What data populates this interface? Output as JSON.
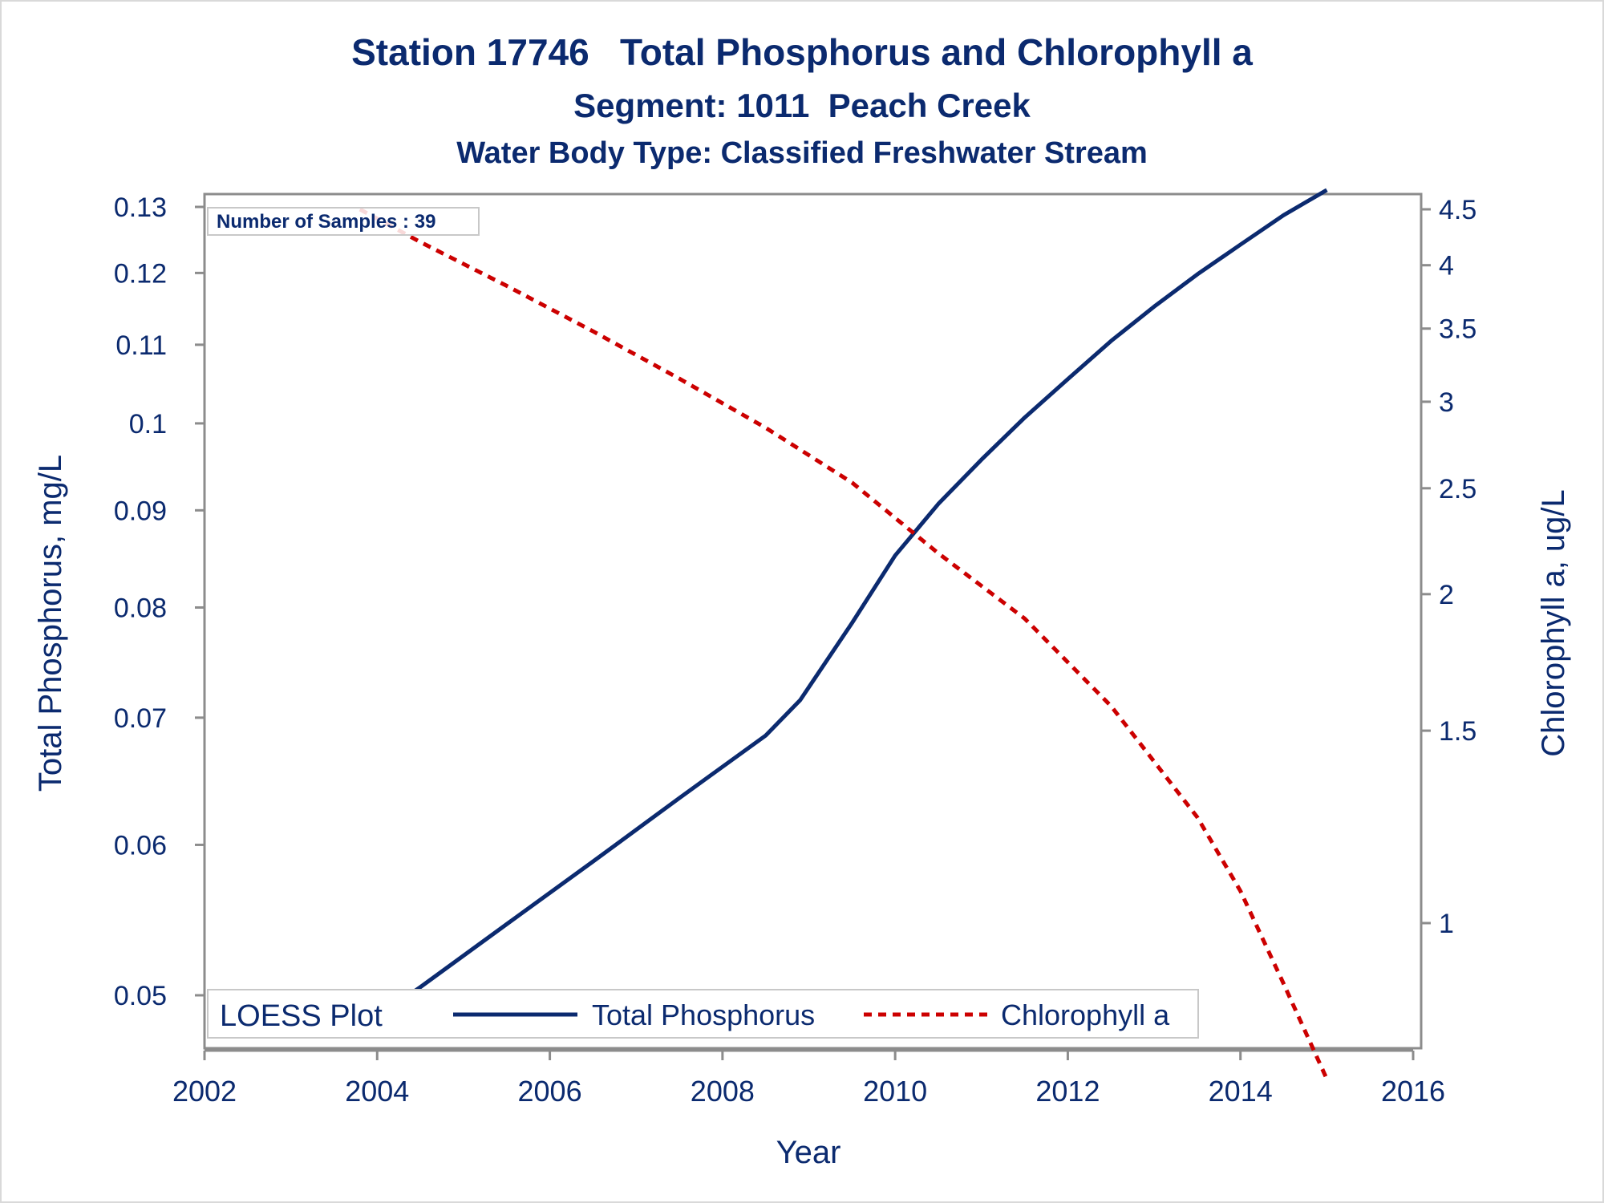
{
  "titles": {
    "line1": "Station 17746   Total Phosphorus and Chlorophyll a",
    "line2": "Segment: 1011  Peach Creek",
    "line3": "Water Body Type: Classified Freshwater Stream"
  },
  "colors": {
    "text": "#0b2a6f",
    "phosphorus": "#0b2a6f",
    "chlorophyll": "#cc0000",
    "axis": "#8c8c8c",
    "inset_border": "#c8c8c8"
  },
  "chart_data": {
    "type": "line",
    "title": "Station 17746   Total Phosphorus and Chlorophyll a",
    "xlabel": "Year",
    "ylabel_left": "Total Phosphorus, mg/L",
    "ylabel_right": "Chlorophyll a, ug/L",
    "xlim": [
      2002,
      2016
    ],
    "xticks": [
      2002,
      2004,
      2006,
      2008,
      2010,
      2012,
      2014,
      2016
    ],
    "y_left": {
      "scale": "log",
      "lim": [
        0.048,
        0.13
      ],
      "ticks": [
        0.05,
        0.06,
        0.07,
        0.08,
        0.09,
        0.1,
        0.11,
        0.12,
        0.13
      ],
      "tick_labels": [
        "0.05",
        "0.06",
        "0.07",
        "0.08",
        "0.09",
        "0.1",
        "0.11",
        "0.12",
        "0.13"
      ]
    },
    "y_right": {
      "scale": "log",
      "lim": [
        0.72,
        4.5
      ],
      "ticks": [
        1,
        1.5,
        2,
        2.5,
        3,
        3.5,
        4,
        4.5
      ],
      "tick_labels": [
        "1",
        "1.5",
        "2",
        "2.5",
        "3",
        "3.5",
        "4",
        "4.5"
      ]
    },
    "series": [
      {
        "name": "Total Phosphorus",
        "axis": "left",
        "style": "solid",
        "x": [
          2003.8,
          2004.5,
          2005.5,
          2006.5,
          2007.5,
          2008.5,
          2008.9,
          2009.5,
          2010.0,
          2010.5,
          2011.0,
          2011.5,
          2012.0,
          2012.5,
          2013.0,
          2013.5,
          2014.0,
          2014.5,
          2015.0
        ],
        "values": [
          0.048,
          0.0505,
          0.0545,
          0.0588,
          0.0635,
          0.0685,
          0.0715,
          0.0785,
          0.0852,
          0.0907,
          0.0957,
          0.1007,
          0.1055,
          0.1105,
          0.1152,
          0.1198,
          0.1242,
          0.1287,
          0.1327
        ]
      },
      {
        "name": "Chlorophyll a",
        "axis": "right",
        "style": "dashed",
        "x": [
          2003.8,
          2004.5,
          2005.5,
          2006.5,
          2007.5,
          2008.5,
          2009.5,
          2010.5,
          2011.5,
          2012.5,
          2013.5,
          2014.0,
          2014.5,
          2015.0
        ],
        "values": [
          4.5,
          4.2,
          3.83,
          3.48,
          3.15,
          2.84,
          2.53,
          2.18,
          1.9,
          1.58,
          1.25,
          1.07,
          0.88,
          0.72
        ]
      }
    ],
    "legend": {
      "title": "LOESS Plot",
      "placement": "bottom-inside",
      "entries": [
        "Total Phosphorus",
        "Chlorophyll a"
      ]
    },
    "inset_label": "Number of Samples : 39",
    "inset_placement": "top-left",
    "grid": false
  }
}
